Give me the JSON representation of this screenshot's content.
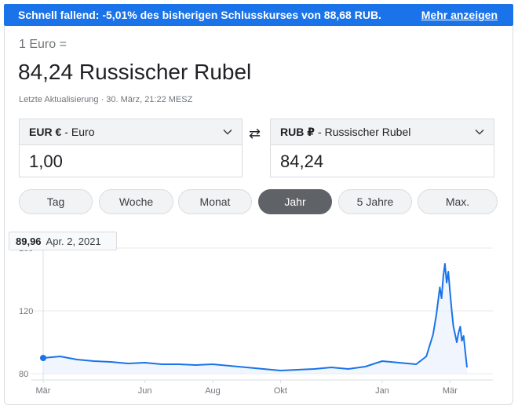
{
  "alert": {
    "text": "Schnell fallend: -5,01% des bisherigen Schlusskurses von 88,68 RUB.",
    "more_label": "Mehr anzeigen"
  },
  "header": {
    "unit_line": "1 Euro =",
    "value_line": "84,24 Russischer Rubel",
    "updated": "Letzte Aktualisierung · 30. März, 21:22 MESZ"
  },
  "converter": {
    "from": {
      "code": "EUR €",
      "name": "Euro",
      "amount": "1,00"
    },
    "to": {
      "code": "RUB ₽",
      "name": "Russischer Rubel",
      "amount": "84,24"
    },
    "swap_icon": "swap-arrows-icon"
  },
  "ranges": {
    "tabs": [
      "Tag",
      "Woche",
      "Monat",
      "Jahr",
      "5 Jahre",
      "Max."
    ],
    "active": "Jahr"
  },
  "tooltip": {
    "value": "89,96",
    "date": "Apr. 2, 2021"
  },
  "colors": {
    "accent": "#1a73e8",
    "line": "#1a73e8",
    "active_tab": "#5f6368"
  },
  "chart_data": {
    "type": "area",
    "ylim": [
      80,
      160
    ],
    "yticks": [
      "80",
      "120",
      "160"
    ],
    "xticks": [
      "Mär",
      "Jun",
      "Aug",
      "Okt",
      "Jan",
      "Mär"
    ],
    "x_tick_months": [
      0,
      3,
      5,
      7,
      10,
      12
    ],
    "x": [
      0,
      0.5,
      1,
      1.5,
      2,
      2.5,
      3,
      3.5,
      4,
      4.5,
      5,
      5.5,
      6,
      6.5,
      7,
      7.5,
      8,
      8.5,
      9,
      9.5,
      10,
      10.5,
      11,
      11.3,
      11.5,
      11.6,
      11.7,
      11.75,
      11.8,
      11.85,
      11.9,
      11.95,
      12.0,
      12.05,
      12.1,
      12.15,
      12.2,
      12.25,
      12.3,
      12.35,
      12.4,
      12.45,
      12.5
    ],
    "values": [
      90,
      91,
      89,
      88,
      87.5,
      86.5,
      87,
      86,
      86,
      85.5,
      86,
      85,
      84,
      83,
      82,
      82.5,
      83,
      84,
      83,
      84.5,
      88,
      87,
      86,
      91,
      105,
      118,
      135,
      128,
      142,
      150,
      138,
      145,
      132,
      120,
      110,
      105,
      100,
      106,
      110,
      101,
      104,
      94,
      84
    ]
  }
}
